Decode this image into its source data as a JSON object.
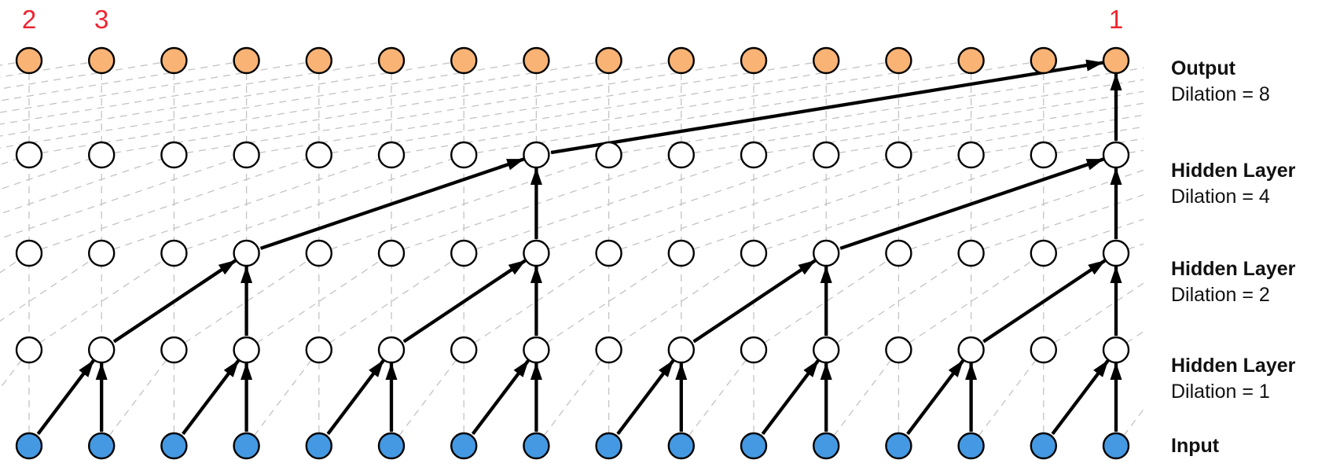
{
  "figure": {
    "columns": 16,
    "dilations_top_to_bottom": [
      8,
      4,
      2,
      1
    ],
    "layers": [
      {
        "name": "output",
        "title": "Output",
        "subtitle": "Dilation = 8",
        "fill": "#f8b375"
      },
      {
        "name": "hidden-4",
        "title": "Hidden Layer",
        "subtitle": "Dilation = 4",
        "fill": "#ffffff"
      },
      {
        "name": "hidden-2",
        "title": "Hidden Layer",
        "subtitle": "Dilation = 2",
        "fill": "#ffffff"
      },
      {
        "name": "hidden-1",
        "title": "Hidden Layer",
        "subtitle": "Dilation = 1",
        "fill": "#ffffff"
      },
      {
        "name": "input",
        "title": "Input",
        "subtitle": "",
        "fill": "#4499e2"
      }
    ],
    "position_markers": [
      {
        "text": "2",
        "column": 1
      },
      {
        "text": "3",
        "column": 2
      },
      {
        "text": "1",
        "column": 16
      }
    ],
    "colors": {
      "marker": "#ee2430",
      "grid": "#c3c3c3",
      "arrow": "#000000",
      "node_stroke": "#000000",
      "output_fill": "#f8b375",
      "hidden_fill": "#ffffff",
      "input_fill": "#4499e2"
    }
  }
}
